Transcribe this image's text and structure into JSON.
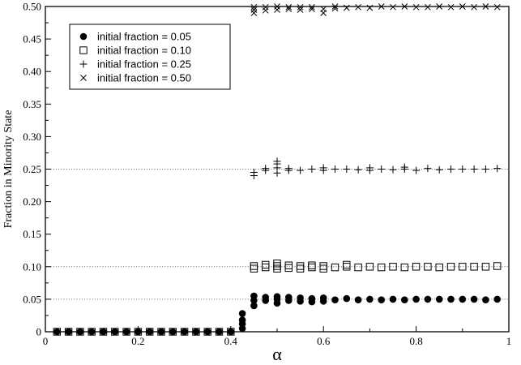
{
  "chart_data": {
    "type": "scatter",
    "xlabel": "α",
    "ylabel": "Fraction in Minority State",
    "xlim": [
      0,
      1
    ],
    "ylim": [
      0,
      0.5
    ],
    "x_ticks": [
      "0",
      "0.2",
      "0.4",
      "0.6",
      "0.8",
      "1"
    ],
    "y_ticks": [
      "0",
      "0.05",
      "0.10",
      "0.15",
      "0.20",
      "0.25",
      "0.30",
      "0.35",
      "0.40",
      "0.45",
      "0.50"
    ],
    "reference_lines": [
      0.05,
      0.1,
      0.25,
      0.5
    ],
    "legend_position": "top-left",
    "series": [
      {
        "name": "initial fraction = 0.05",
        "marker": "filled-circle",
        "points": [
          [
            0.025,
            0
          ],
          [
            0.05,
            0
          ],
          [
            0.075,
            0
          ],
          [
            0.1,
            0
          ],
          [
            0.125,
            0
          ],
          [
            0.15,
            0
          ],
          [
            0.175,
            0
          ],
          [
            0.2,
            0
          ],
          [
            0.225,
            0
          ],
          [
            0.25,
            0
          ],
          [
            0.275,
            0
          ],
          [
            0.3,
            0
          ],
          [
            0.325,
            0
          ],
          [
            0.35,
            0
          ],
          [
            0.375,
            0
          ],
          [
            0.4,
            0
          ],
          [
            0.425,
            0.005
          ],
          [
            0.425,
            0.012
          ],
          [
            0.425,
            0.018
          ],
          [
            0.425,
            0.028
          ],
          [
            0.45,
            0.04
          ],
          [
            0.45,
            0.048
          ],
          [
            0.45,
            0.055
          ],
          [
            0.475,
            0.048
          ],
          [
            0.475,
            0.053
          ],
          [
            0.5,
            0.044
          ],
          [
            0.5,
            0.05
          ],
          [
            0.5,
            0.054
          ],
          [
            0.525,
            0.048
          ],
          [
            0.525,
            0.053
          ],
          [
            0.55,
            0.047
          ],
          [
            0.55,
            0.052
          ],
          [
            0.575,
            0.046
          ],
          [
            0.575,
            0.051
          ],
          [
            0.6,
            0.047
          ],
          [
            0.6,
            0.052
          ],
          [
            0.625,
            0.049
          ],
          [
            0.65,
            0.051
          ],
          [
            0.675,
            0.049
          ],
          [
            0.7,
            0.05
          ],
          [
            0.725,
            0.049
          ],
          [
            0.75,
            0.05
          ],
          [
            0.775,
            0.049
          ],
          [
            0.8,
            0.05
          ],
          [
            0.825,
            0.05
          ],
          [
            0.85,
            0.05
          ],
          [
            0.875,
            0.05
          ],
          [
            0.9,
            0.05
          ],
          [
            0.925,
            0.05
          ],
          [
            0.95,
            0.049
          ],
          [
            0.975,
            0.05
          ]
        ]
      },
      {
        "name": "initial fraction = 0.10",
        "marker": "open-square",
        "points": [
          [
            0.025,
            0
          ],
          [
            0.05,
            0
          ],
          [
            0.075,
            0
          ],
          [
            0.1,
            0
          ],
          [
            0.125,
            0
          ],
          [
            0.15,
            0
          ],
          [
            0.175,
            0
          ],
          [
            0.2,
            0
          ],
          [
            0.225,
            0
          ],
          [
            0.25,
            0
          ],
          [
            0.275,
            0
          ],
          [
            0.3,
            0
          ],
          [
            0.325,
            0
          ],
          [
            0.35,
            0
          ],
          [
            0.375,
            0
          ],
          [
            0.4,
            0
          ],
          [
            0.45,
            0.097
          ],
          [
            0.45,
            0.101
          ],
          [
            0.475,
            0.099
          ],
          [
            0.475,
            0.103
          ],
          [
            0.5,
            0.097
          ],
          [
            0.5,
            0.101
          ],
          [
            0.5,
            0.105
          ],
          [
            0.525,
            0.098
          ],
          [
            0.525,
            0.102
          ],
          [
            0.55,
            0.097
          ],
          [
            0.55,
            0.101
          ],
          [
            0.575,
            0.099
          ],
          [
            0.575,
            0.102
          ],
          [
            0.6,
            0.097
          ],
          [
            0.6,
            0.101
          ],
          [
            0.625,
            0.099
          ],
          [
            0.65,
            0.1
          ],
          [
            0.65,
            0.103
          ],
          [
            0.675,
            0.099
          ],
          [
            0.7,
            0.1
          ],
          [
            0.725,
            0.099
          ],
          [
            0.75,
            0.1
          ],
          [
            0.775,
            0.099
          ],
          [
            0.8,
            0.1
          ],
          [
            0.825,
            0.1
          ],
          [
            0.85,
            0.099
          ],
          [
            0.875,
            0.1
          ],
          [
            0.9,
            0.1
          ],
          [
            0.925,
            0.1
          ],
          [
            0.95,
            0.1
          ],
          [
            0.975,
            0.101
          ]
        ]
      },
      {
        "name": "initial fraction = 0.25",
        "marker": "plus",
        "points": [
          [
            0.45,
            0.24
          ],
          [
            0.45,
            0.245
          ],
          [
            0.475,
            0.248
          ],
          [
            0.475,
            0.251
          ],
          [
            0.5,
            0.244
          ],
          [
            0.5,
            0.252
          ],
          [
            0.5,
            0.258
          ],
          [
            0.5,
            0.262
          ],
          [
            0.525,
            0.248
          ],
          [
            0.525,
            0.251
          ],
          [
            0.55,
            0.248
          ],
          [
            0.575,
            0.25
          ],
          [
            0.6,
            0.248
          ],
          [
            0.6,
            0.252
          ],
          [
            0.625,
            0.25
          ],
          [
            0.65,
            0.25
          ],
          [
            0.675,
            0.249
          ],
          [
            0.7,
            0.248
          ],
          [
            0.7,
            0.252
          ],
          [
            0.725,
            0.25
          ],
          [
            0.75,
            0.249
          ],
          [
            0.775,
            0.25
          ],
          [
            0.775,
            0.253
          ],
          [
            0.8,
            0.248
          ],
          [
            0.825,
            0.251
          ],
          [
            0.85,
            0.249
          ],
          [
            0.875,
            0.25
          ],
          [
            0.9,
            0.25
          ],
          [
            0.925,
            0.25
          ],
          [
            0.95,
            0.25
          ],
          [
            0.975,
            0.251
          ]
        ]
      },
      {
        "name": "initial fraction = 0.50",
        "marker": "cross",
        "points": [
          [
            0.45,
            0.49
          ],
          [
            0.45,
            0.495
          ],
          [
            0.45,
            0.499
          ],
          [
            0.475,
            0.494
          ],
          [
            0.475,
            0.499
          ],
          [
            0.5,
            0.495
          ],
          [
            0.5,
            0.5
          ],
          [
            0.525,
            0.496
          ],
          [
            0.525,
            0.499
          ],
          [
            0.55,
            0.495
          ],
          [
            0.55,
            0.499
          ],
          [
            0.575,
            0.496
          ],
          [
            0.575,
            0.499
          ],
          [
            0.6,
            0.49
          ],
          [
            0.6,
            0.496
          ],
          [
            0.625,
            0.497
          ],
          [
            0.625,
            0.5
          ],
          [
            0.65,
            0.498
          ],
          [
            0.675,
            0.499
          ],
          [
            0.7,
            0.498
          ],
          [
            0.725,
            0.5
          ],
          [
            0.75,
            0.499
          ],
          [
            0.775,
            0.5
          ],
          [
            0.8,
            0.499
          ],
          [
            0.825,
            0.499
          ],
          [
            0.85,
            0.5
          ],
          [
            0.875,
            0.499
          ],
          [
            0.9,
            0.5
          ],
          [
            0.925,
            0.499
          ],
          [
            0.95,
            0.5
          ],
          [
            0.975,
            0.499
          ]
        ]
      }
    ]
  }
}
